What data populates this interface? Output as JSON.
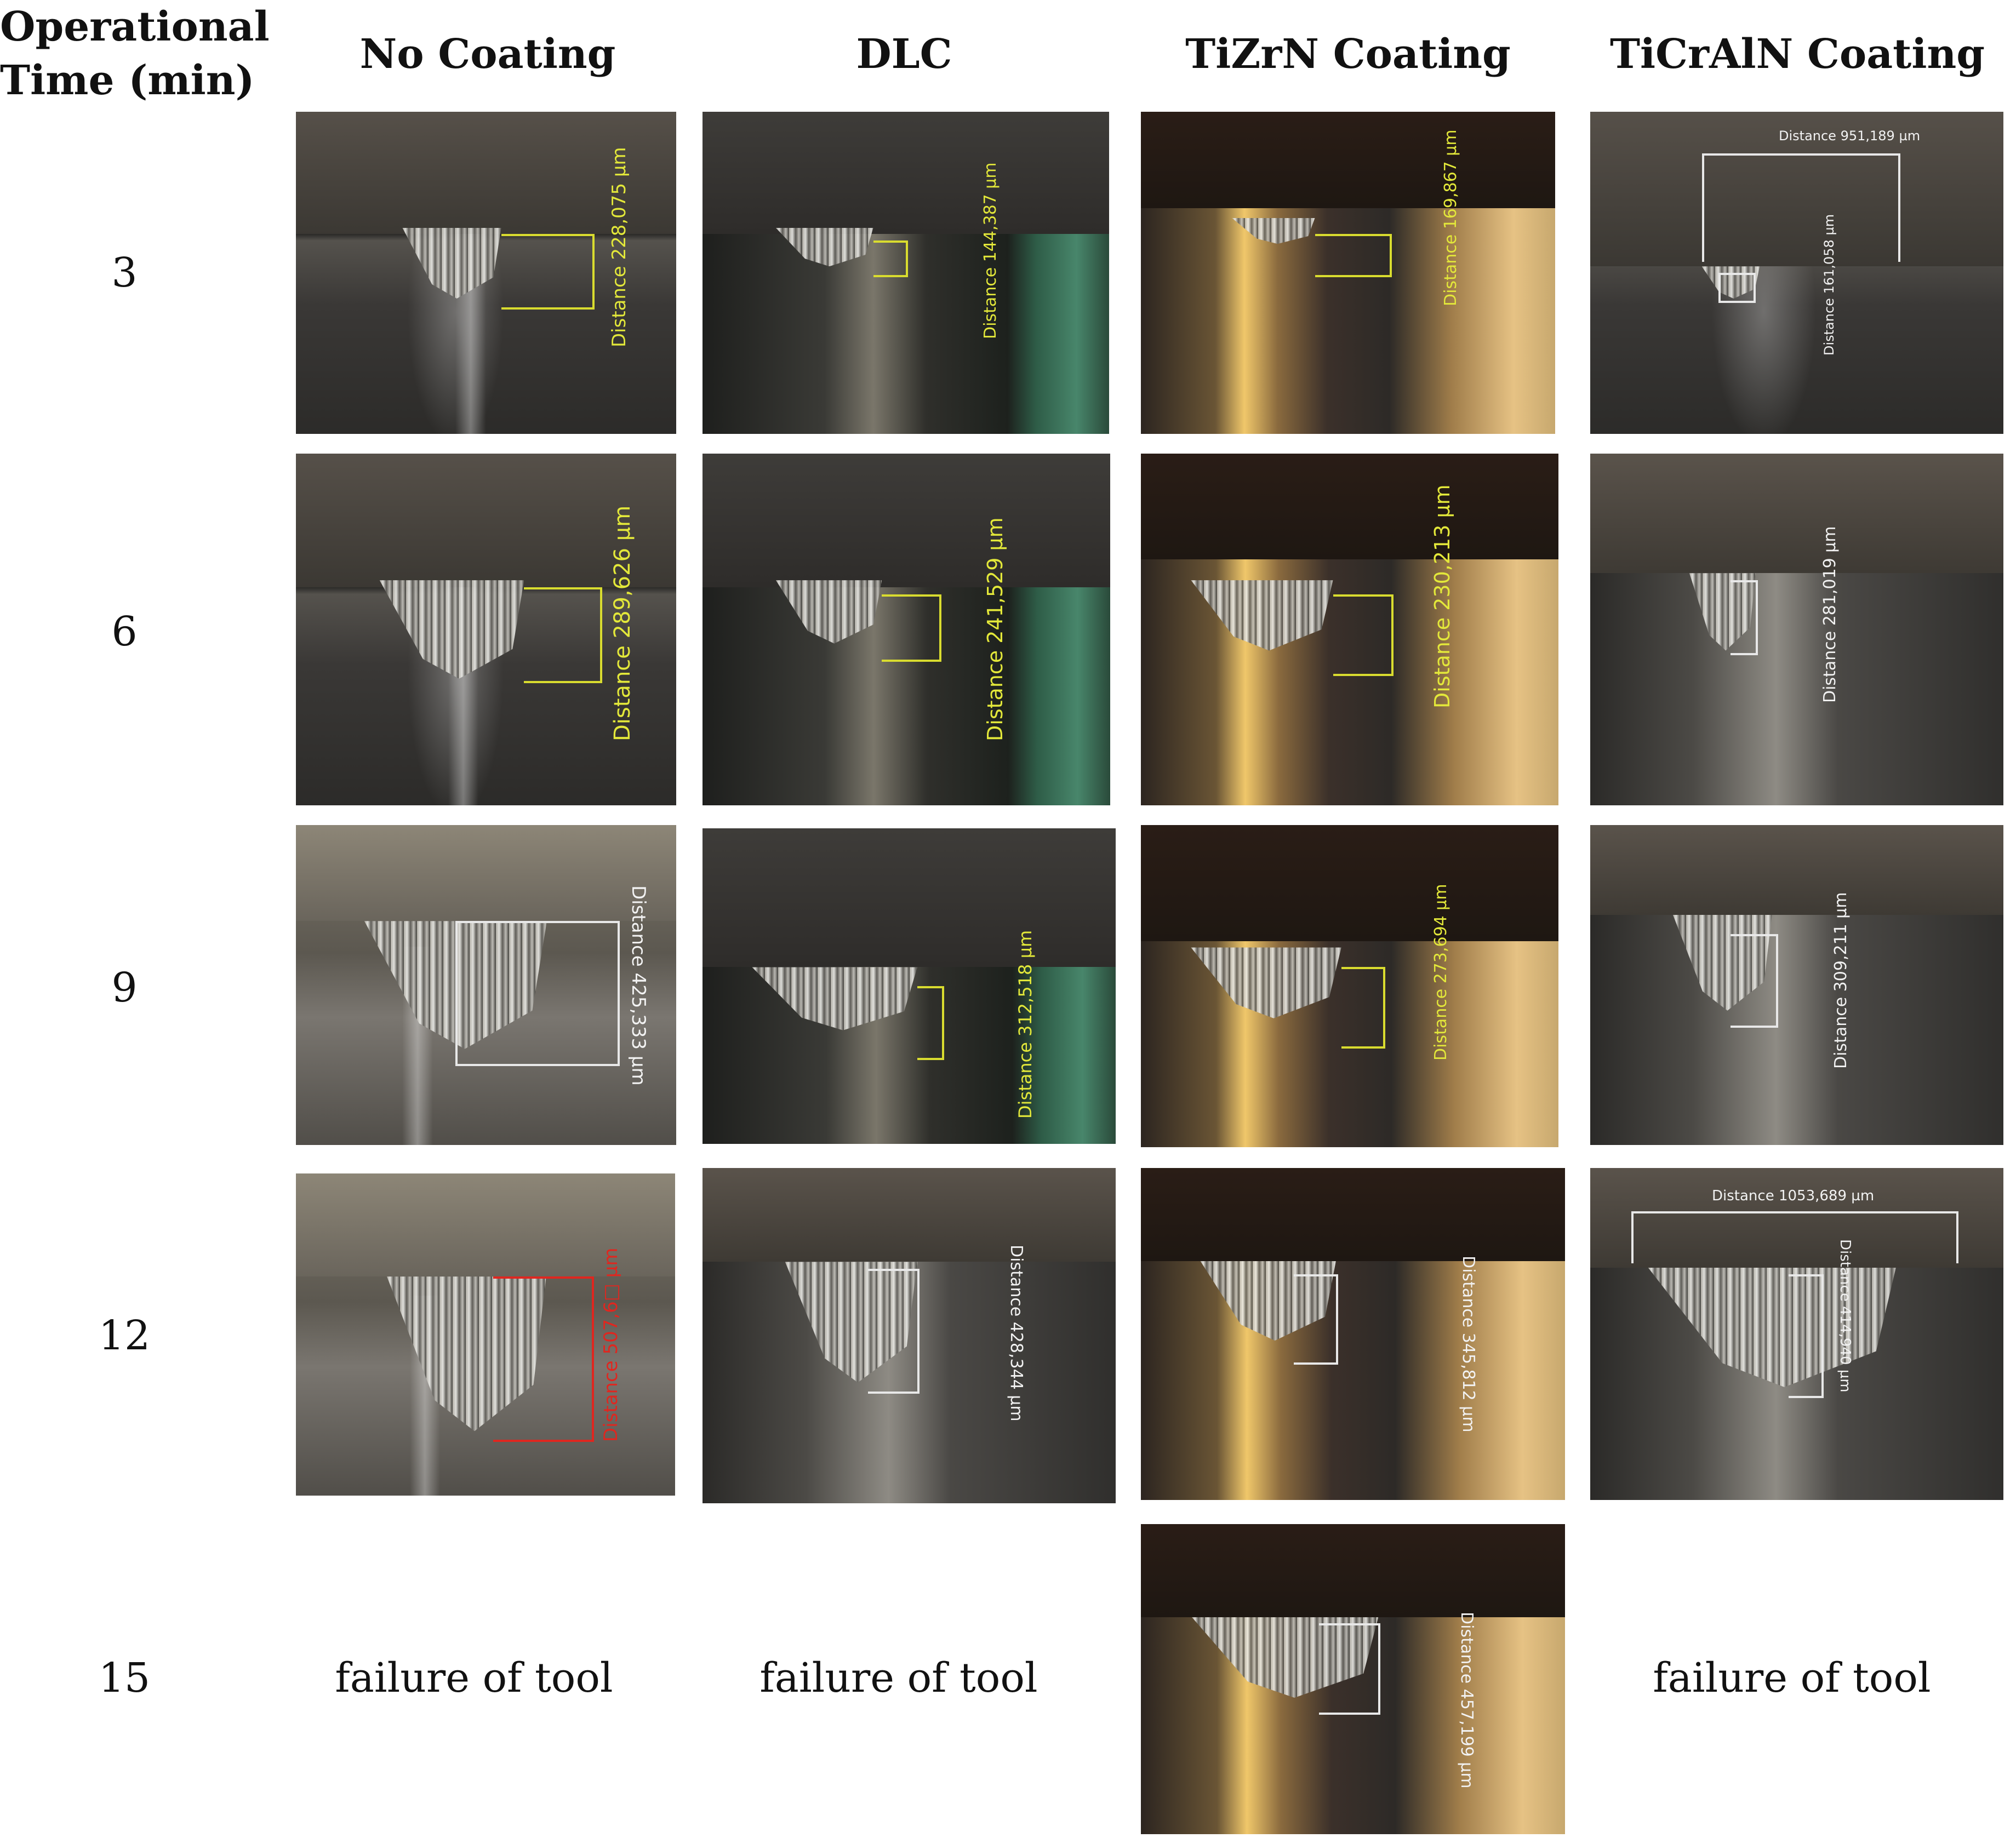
{
  "header": {
    "row_label": [
      "Operational",
      "Time (min)"
    ],
    "columns": [
      "No Coating",
      "DLC",
      "TiZrN Coating",
      "TiCrAlN Coating"
    ]
  },
  "rows": [
    {
      "time": "3",
      "cells": [
        {
          "measurements": [
            "Distance 228,075 µm"
          ]
        },
        {
          "measurements": [
            "Distance 144,387 µm"
          ]
        },
        {
          "measurements": [
            "Distance 169,867 µm"
          ]
        },
        {
          "measurements": [
            "Distance 951,189 µm",
            "Distance 161,058 µm"
          ]
        }
      ]
    },
    {
      "time": "6",
      "cells": [
        {
          "measurements": [
            "Distance 289,626 µm"
          ]
        },
        {
          "measurements": [
            "Distance 241,529 µm"
          ]
        },
        {
          "measurements": [
            "Distance 230,213 µm"
          ]
        },
        {
          "measurements": [
            "Distance 281,019 µm"
          ]
        }
      ]
    },
    {
      "time": "9",
      "cells": [
        {
          "measurements": [
            "Distance 425,333 µm"
          ]
        },
        {
          "measurements": [
            "Distance 312,518 µm"
          ]
        },
        {
          "measurements": [
            "Distance 273,694 µm"
          ]
        },
        {
          "measurements": [
            "Distance 309,211 µm"
          ]
        }
      ]
    },
    {
      "time": "12",
      "cells": [
        {
          "measurements": [
            "Distance 507,6□ µm"
          ]
        },
        {
          "measurements": [
            "Distance 428,344 µm"
          ]
        },
        {
          "measurements": [
            "Distance 345,812 µm"
          ]
        },
        {
          "measurements": [
            "Distance 1053,689 µm",
            "Distance 414,940 µm"
          ]
        }
      ]
    },
    {
      "time": "15",
      "cells": [
        {
          "text": "failure of tool"
        },
        {
          "text": "failure of tool"
        },
        {
          "measurements": [
            "Distance 457,199 µm"
          ]
        },
        {
          "text": "failure of tool"
        }
      ]
    }
  ]
}
